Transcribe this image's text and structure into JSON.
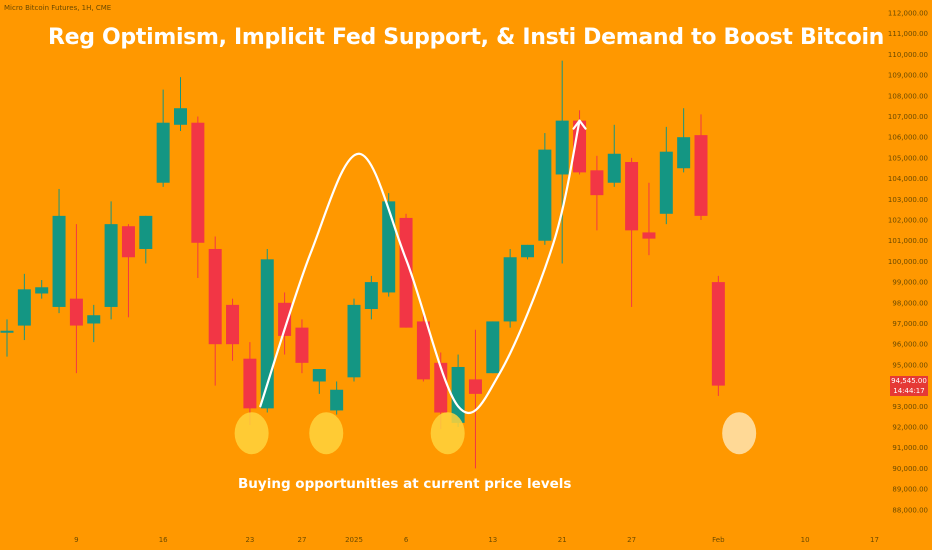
{
  "symbol_label": "Micro Bitcoin Futures, 1H, CME",
  "title": "Reg Optimism, Implicit Fed Support, & Insti Demand to Boost Bitcoin",
  "annotation": "Buying opportunities at current price levels",
  "last_price": "94,545.00",
  "countdown": "14:44:17",
  "colors": {
    "background": "#FF9800",
    "up": "#149683",
    "down": "#F23645",
    "curve": "#ffffff",
    "circle": "#FFD33D"
  },
  "chart_data": {
    "type": "candlestick",
    "title": "Reg Optimism, Implicit Fed Support, & Insti Demand to Boost Bitcoin",
    "xlabel": "",
    "ylabel": "",
    "ylim": [
      87000,
      112500
    ],
    "y_ticks": [
      "88,000.00",
      "89,000.00",
      "90,000.00",
      "91,000.00",
      "92,000.00",
      "93,000.00",
      "94,000.00",
      "95,000.00",
      "96,000.00",
      "97,000.00",
      "98,000.00",
      "99,000.00",
      "100,000.00",
      "101,000.00",
      "102,000.00",
      "103,000.00",
      "104,000.00",
      "105,000.00",
      "106,000.00",
      "107,000.00",
      "108,000.00",
      "109,000.00",
      "110,000.00",
      "111,000.00",
      "112,000.00"
    ],
    "x_ticks": [
      {
        "label": "9",
        "index": 4
      },
      {
        "label": "16",
        "index": 9
      },
      {
        "label": "23",
        "index": 14
      },
      {
        "label": "27",
        "index": 17
      },
      {
        "label": "2025",
        "index": 20
      },
      {
        "label": "6",
        "index": 23
      },
      {
        "label": "13",
        "index": 28
      },
      {
        "label": "21",
        "index": 32
      },
      {
        "label": "27",
        "index": 36
      },
      {
        "label": "Feb",
        "index": 41
      },
      {
        "label": "10",
        "index": 46
      },
      {
        "label": "17",
        "index": 50
      }
    ],
    "candles": [
      {
        "o": 96650,
        "h": 97200,
        "l": 95400,
        "c": 96650
      },
      {
        "o": 96900,
        "h": 99400,
        "l": 96200,
        "c": 98650
      },
      {
        "o": 98450,
        "h": 99100,
        "l": 98200,
        "c": 98750
      },
      {
        "o": 97800,
        "h": 103500,
        "l": 97500,
        "c": 102200
      },
      {
        "o": 98200,
        "h": 101800,
        "l": 94600,
        "c": 96900
      },
      {
        "o": 97000,
        "h": 97900,
        "l": 96100,
        "c": 97400
      },
      {
        "o": 97800,
        "h": 102900,
        "l": 97200,
        "c": 101800
      },
      {
        "o": 101700,
        "h": 101800,
        "l": 97300,
        "c": 100200
      },
      {
        "o": 100600,
        "h": 102200,
        "l": 99900,
        "c": 102200
      },
      {
        "o": 103800,
        "h": 108300,
        "l": 103600,
        "c": 106700
      },
      {
        "o": 106600,
        "h": 108900,
        "l": 106300,
        "c": 107400
      },
      {
        "o": 106700,
        "h": 107000,
        "l": 99200,
        "c": 100900
      },
      {
        "o": 100600,
        "h": 101200,
        "l": 94000,
        "c": 96000
      },
      {
        "o": 97900,
        "h": 98200,
        "l": 95200,
        "c": 96000
      },
      {
        "o": 95300,
        "h": 96100,
        "l": 92100,
        "c": 92900
      },
      {
        "o": 92900,
        "h": 100600,
        "l": 92700,
        "c": 100100
      },
      {
        "o": 98000,
        "h": 98500,
        "l": 95500,
        "c": 96400
      },
      {
        "o": 96800,
        "h": 97200,
        "l": 94600,
        "c": 95100
      },
      {
        "o": 94200,
        "h": 94800,
        "l": 93600,
        "c": 94800
      },
      {
        "o": 92800,
        "h": 94200,
        "l": 92600,
        "c": 93800
      },
      {
        "o": 94400,
        "h": 98200,
        "l": 94200,
        "c": 97900
      },
      {
        "o": 97700,
        "h": 99300,
        "l": 97200,
        "c": 99000
      },
      {
        "o": 98500,
        "h": 103300,
        "l": 98300,
        "c": 102900
      },
      {
        "o": 102100,
        "h": 102300,
        "l": 96800,
        "c": 96800
      },
      {
        "o": 97100,
        "h": 97500,
        "l": 94200,
        "c": 94300
      },
      {
        "o": 95100,
        "h": 95600,
        "l": 91900,
        "c": 92700
      },
      {
        "o": 92200,
        "h": 95500,
        "l": 92000,
        "c": 94900
      },
      {
        "o": 94300,
        "h": 96700,
        "l": 90000,
        "c": 93600
      },
      {
        "o": 94600,
        "h": 97100,
        "l": 94600,
        "c": 97100
      },
      {
        "o": 97100,
        "h": 100600,
        "l": 96800,
        "c": 100200
      },
      {
        "o": 100200,
        "h": 100800,
        "l": 100100,
        "c": 100800
      },
      {
        "o": 101000,
        "h": 106200,
        "l": 100800,
        "c": 105400
      },
      {
        "o": 104200,
        "h": 109700,
        "l": 99900,
        "c": 106800
      },
      {
        "o": 106800,
        "h": 107300,
        "l": 104200,
        "c": 104300
      },
      {
        "o": 104400,
        "h": 105100,
        "l": 101500,
        "c": 103200
      },
      {
        "o": 103800,
        "h": 106600,
        "l": 103600,
        "c": 105200
      },
      {
        "o": 104800,
        "h": 105000,
        "l": 97800,
        "c": 101500
      },
      {
        "o": 101400,
        "h": 103800,
        "l": 100300,
        "c": 101100
      },
      {
        "o": 102300,
        "h": 106500,
        "l": 101800,
        "c": 105300
      },
      {
        "o": 104500,
        "h": 107400,
        "l": 104300,
        "c": 106000
      },
      {
        "o": 106100,
        "h": 107100,
        "l": 102000,
        "c": 102200
      },
      {
        "o": 99000,
        "h": 99300,
        "l": 93500,
        "c": 94000
      }
    ],
    "curve_path": [
      {
        "i": 14.6,
        "p": 93000
      },
      {
        "i": 17.5,
        "p": 100400
      },
      {
        "i": 20.3,
        "p": 105200
      },
      {
        "i": 23.0,
        "p": 100100
      },
      {
        "i": 26.0,
        "p": 93000
      },
      {
        "i": 28.4,
        "p": 94600
      },
      {
        "i": 31.5,
        "p": 100900
      },
      {
        "i": 33.0,
        "p": 106800
      }
    ],
    "buy_circles": [
      {
        "i": 14.1,
        "p": 91700
      },
      {
        "i": 18.4,
        "p": 91700
      },
      {
        "i": 25.4,
        "p": 91700
      },
      {
        "i": 42.2,
        "p": 91700
      }
    ]
  }
}
